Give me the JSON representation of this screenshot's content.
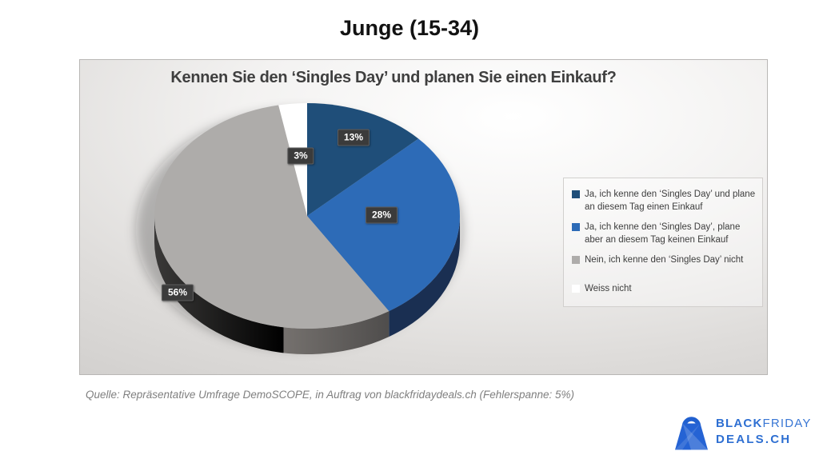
{
  "page": {
    "title": "Junge (15-34)",
    "source": "Quelle: Repräsentative Umfrage DemoSCOPE, in Auftrag von blackfridaydeals.ch (Fehlerspanne: 5%)"
  },
  "chart_data": {
    "type": "pie",
    "style": "3d",
    "title": "Kennen Sie den ‘Singles Day’ und planen Sie einen Einkauf?",
    "start_angle_deg": 0,
    "direction": "clockwise",
    "legend_position": "right",
    "slices": [
      {
        "label": "Ja, ich kenne den ‘Singles Day’ und plane an diesem Tag einen Einkauf",
        "value": 13,
        "display": "13%",
        "color": "#1f4e79",
        "side_color": "#1a2f52"
      },
      {
        "label": "Ja, ich kenne den ‘Singles Day’, plane aber an diesem Tag keinen Einkauf",
        "value": 28,
        "display": "28%",
        "color": "#2d6bb7",
        "side_color": "#1a2f52"
      },
      {
        "label": "Nein, ich kenne den ‘Singles Day’ nicht",
        "value": 56,
        "display": "56%",
        "color": "#aeacaa",
        "side_color": "gray-gradient"
      },
      {
        "label": "Weiss nicht",
        "value": 3,
        "display": "3%",
        "color": "#ffffff",
        "side_color": null
      }
    ]
  },
  "logo": {
    "line1_bold": "BLACK",
    "line1_light": "FRIDAY",
    "line2": "DEALS.CH",
    "color": "#2e6fd2"
  }
}
